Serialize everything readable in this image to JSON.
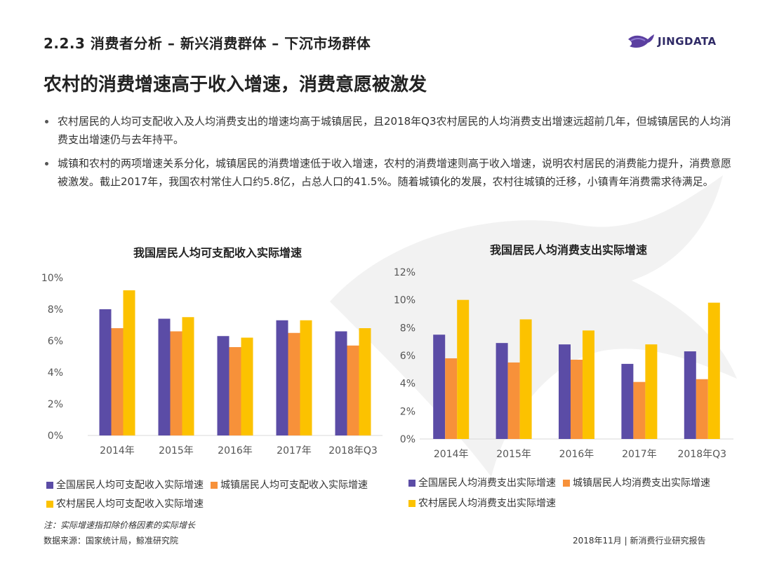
{
  "section_title": "2.2.3 消费者分析 – 新兴消费群体 – 下沉市场群体",
  "logo": {
    "text": "JINGDATA"
  },
  "headline": "农村的消费增速高于收入增速，消费意愿被激发",
  "bullets": [
    "农村居民的人均可支配收入及人均消费支出的增速均高于城镇居民，且2018年Q3农村居民的人均消费支出增速远超前几年，但城镇居民的人均消费支出增速仍与去年持平。",
    "城镇和农村的两项增速关系分化，城镇居民的消费增速低于收入增速，农村的消费增速则高于收入增速，说明农村居民的消费能力提升，消费意愿被激发。截止2017年，我国农村常住人口约5.8亿，占总人口的41.5%。随着城镇化的发展，农村往城镇的迁移，小镇青年消费需求待满足。"
  ],
  "colors": {
    "purple": "#5b4ca6",
    "orange": "#f7913a",
    "yellow": "#fcc200"
  },
  "chart_data": [
    {
      "type": "bar",
      "title": "我国居民人均可支配收入实际增速",
      "categories": [
        "2014年",
        "2015年",
        "2016年",
        "2017年",
        "2018年Q3"
      ],
      "ylim": [
        0,
        10
      ],
      "yticks": [
        "0%",
        "2%",
        "4%",
        "6%",
        "8%",
        "10%"
      ],
      "series": [
        {
          "name": "全国居民人均可支配收入实际增速",
          "values": [
            8.0,
            7.4,
            6.3,
            7.3,
            6.6
          ]
        },
        {
          "name": "城镇居民人均可支配收入实际增速",
          "values": [
            6.8,
            6.6,
            5.6,
            6.5,
            5.7
          ]
        },
        {
          "name": "农村居民人均可支配收入实际增速",
          "values": [
            9.2,
            7.5,
            6.2,
            7.3,
            6.8
          ]
        }
      ]
    },
    {
      "type": "bar",
      "title": "我国居民人均消费支出实际增速",
      "categories": [
        "2014年",
        "2015年",
        "2016年",
        "2017年",
        "2018年Q3"
      ],
      "ylim": [
        0,
        12
      ],
      "yticks": [
        "0%",
        "2%",
        "4%",
        "6%",
        "8%",
        "10%",
        "12%"
      ],
      "series": [
        {
          "name": "全国居民人均消费支出实际增速",
          "values": [
            7.5,
            6.9,
            6.8,
            5.4,
            6.3
          ]
        },
        {
          "name": "城镇居民人均消费支出实际增速",
          "values": [
            5.8,
            5.5,
            5.7,
            4.1,
            4.3
          ]
        },
        {
          "name": "农村居民人均消费支出实际增速",
          "values": [
            10.0,
            8.6,
            7.8,
            6.8,
            9.8
          ]
        }
      ]
    }
  ],
  "note": "注：实际增速指扣除价格因素的实际增长",
  "source": "数据来源：国家统计局，鲸准研究院",
  "footer": "2018年11月 | 新消费行业研究报告"
}
